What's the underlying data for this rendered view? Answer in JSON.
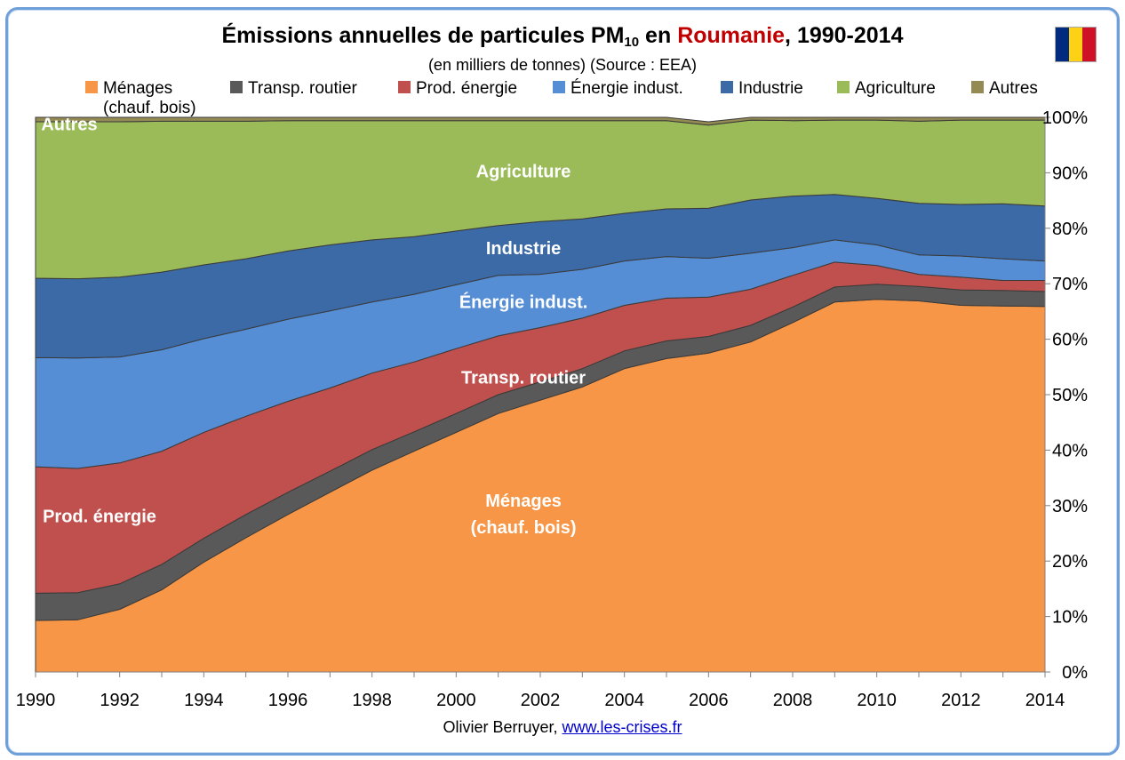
{
  "title": {
    "prefix": "Émissions annuelles de particules PM",
    "sub": "10",
    "middle": " en ",
    "highlight": "Roumanie",
    "suffix": ", 1990-2014"
  },
  "subtitle": "(en milliers de tonnes) (Source : EEA)",
  "flag": {
    "colors": [
      "#002b7f",
      "#fcd116",
      "#ce1126"
    ]
  },
  "legend": [
    {
      "label": "Ménages",
      "label2": "(chauf. bois)",
      "color": "#f79646"
    },
    {
      "label": "Transp. routier",
      "color": "#595959"
    },
    {
      "label": "Prod. énergie",
      "color": "#c0504d"
    },
    {
      "label": "Énergie indust.",
      "color": "#558ed5"
    },
    {
      "label": "Industrie",
      "color": "#3b6aa7"
    },
    {
      "label": "Agriculture",
      "color": "#9bbb59"
    },
    {
      "label": "Autres",
      "color": "#948a54"
    }
  ],
  "credit": {
    "author": "Olivier Berruyer,",
    "link": "www.les-crises.fr"
  },
  "chart_data": {
    "type": "area",
    "stacked": true,
    "normalized_percent": true,
    "x": [
      1990,
      1991,
      1992,
      1993,
      1994,
      1995,
      1996,
      1997,
      1998,
      1999,
      2000,
      2001,
      2002,
      2003,
      2004,
      2005,
      2006,
      2007,
      2008,
      2009,
      2010,
      2011,
      2012,
      2013,
      2014
    ],
    "x_ticks": [
      1990,
      1992,
      1994,
      1996,
      1998,
      2000,
      2002,
      2004,
      2006,
      2008,
      2010,
      2012,
      2014
    ],
    "ylim": [
      0,
      100
    ],
    "y_ticks": [
      "0%",
      "10%",
      "20%",
      "30%",
      "40%",
      "50%",
      "60%",
      "70%",
      "80%",
      "90%",
      "100%"
    ],
    "y_axis_side": "right",
    "series": [
      {
        "name": "Ménages (chauf. bois)",
        "color": "#f79646",
        "values": [
          9.3,
          9.4,
          11.3,
          14.8,
          19.8,
          24.2,
          28.4,
          32.4,
          36.4,
          39.8,
          43.2,
          46.6,
          49.0,
          51.4,
          54.7,
          56.5,
          57.5,
          59.5,
          63.0,
          66.7,
          67.2,
          66.9,
          66.1,
          66.0,
          65.9
        ]
      },
      {
        "name": "Transp. routier",
        "color": "#595959",
        "values": [
          4.9,
          4.9,
          4.6,
          4.6,
          4.3,
          4.2,
          4.0,
          3.8,
          3.7,
          3.5,
          3.4,
          3.4,
          3.3,
          3.3,
          3.2,
          3.2,
          3.0,
          3.0,
          2.8,
          2.7,
          2.7,
          2.6,
          2.8,
          2.8,
          2.7
        ]
      },
      {
        "name": "Prod. énergie",
        "color": "#c0504d",
        "values": [
          22.8,
          22.4,
          21.8,
          20.4,
          19.1,
          17.7,
          16.4,
          15.0,
          13.8,
          12.6,
          11.7,
          10.6,
          9.8,
          9.1,
          8.2,
          7.7,
          7.1,
          6.5,
          5.7,
          4.5,
          3.4,
          2.2,
          2.3,
          1.8,
          2.0
        ]
      },
      {
        "name": "Énergie indust.",
        "color": "#558ed5",
        "values": [
          19.7,
          19.9,
          19.1,
          18.3,
          16.9,
          15.7,
          14.8,
          13.9,
          12.8,
          12.2,
          11.5,
          10.9,
          9.6,
          8.8,
          8.0,
          7.5,
          7.0,
          6.5,
          5.0,
          4.0,
          3.7,
          3.5,
          3.8,
          3.9,
          3.5
        ]
      },
      {
        "name": "Industrie",
        "color": "#3b6aa7",
        "values": [
          14.3,
          14.3,
          14.4,
          14.0,
          13.3,
          12.7,
          12.3,
          11.9,
          11.2,
          10.4,
          9.7,
          9.0,
          9.5,
          9.1,
          8.6,
          8.6,
          9.0,
          9.6,
          9.3,
          8.2,
          8.4,
          9.3,
          9.3,
          9.9,
          9.9
        ]
      },
      {
        "name": "Agriculture",
        "color": "#9bbb59",
        "values": [
          28.2,
          28.3,
          28.0,
          27.2,
          25.9,
          24.8,
          23.5,
          22.4,
          21.5,
          20.9,
          19.9,
          18.9,
          18.2,
          17.7,
          16.7,
          15.9,
          15.0,
          14.4,
          13.6,
          13.4,
          14.1,
          14.8,
          15.2,
          15.1,
          15.5
        ]
      },
      {
        "name": "Autres",
        "color": "#948a54",
        "values": [
          0.8,
          0.8,
          0.8,
          0.7,
          0.7,
          0.7,
          0.6,
          0.6,
          0.6,
          0.6,
          0.6,
          0.6,
          0.6,
          0.6,
          0.6,
          0.6,
          0.6,
          0.5,
          0.6,
          0.5,
          0.5,
          0.7,
          0.5,
          0.5,
          0.5
        ]
      }
    ],
    "annotations": [
      {
        "text": "Autres",
        "series": "Autres"
      },
      {
        "text": "Agriculture",
        "series": "Agriculture"
      },
      {
        "text": "Industrie",
        "series": "Industrie"
      },
      {
        "text": "Énergie indust.",
        "series": "Énergie indust."
      },
      {
        "text": "Transp. routier",
        "series": "Transp. routier"
      },
      {
        "text": "Prod. énergie",
        "series": "Prod. énergie"
      },
      {
        "text": "Ménages",
        "series": "Ménages (chauf. bois)"
      },
      {
        "text": "(chauf. bois)",
        "series": "Ménages (chauf. bois)"
      }
    ]
  }
}
